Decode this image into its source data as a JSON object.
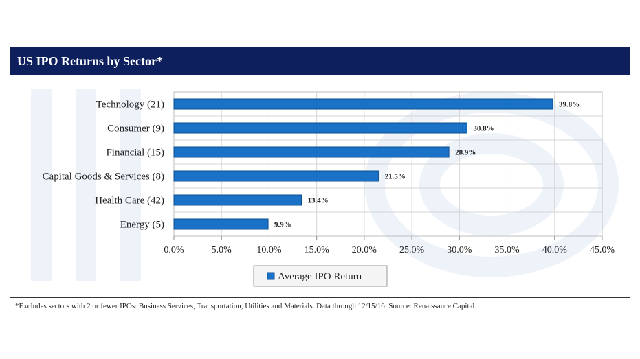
{
  "colors": {
    "bar": "#1a72c6",
    "bar_edge": "#0f4f93",
    "header": "#0d1f5c",
    "grid": "#d4d4d4"
  },
  "footnote": "*Excludes sectors with 2 or fewer IPOs: Business Services, Transportation, Utilities and Materials. Data through 12/15/16. Source: Renaissance Capital.",
  "chart_data": {
    "type": "bar",
    "orientation": "horizontal",
    "title": "US IPO Returns by Sector*",
    "categories": [
      "Technology (21)",
      "Consumer (9)",
      "Financial (15)",
      "Capital Goods & Services (8)",
      "Health Care (42)",
      "Energy (5)"
    ],
    "series": [
      {
        "name": "Average IPO Return",
        "values": [
          39.8,
          30.8,
          28.9,
          21.5,
          13.4,
          9.9
        ]
      }
    ],
    "data_labels": [
      "39.8%",
      "30.8%",
      "28.9%",
      "21.5%",
      "13.4%",
      "9.9%"
    ],
    "xlim": [
      0,
      45
    ],
    "xticks": [
      "0.0%",
      "5.0%",
      "10.0%",
      "15.0%",
      "20.0%",
      "25.0%",
      "30.0%",
      "35.0%",
      "40.0%",
      "45.0%"
    ],
    "xlabel": "",
    "ylabel": "",
    "grid": true,
    "legend_position": "bottom"
  }
}
